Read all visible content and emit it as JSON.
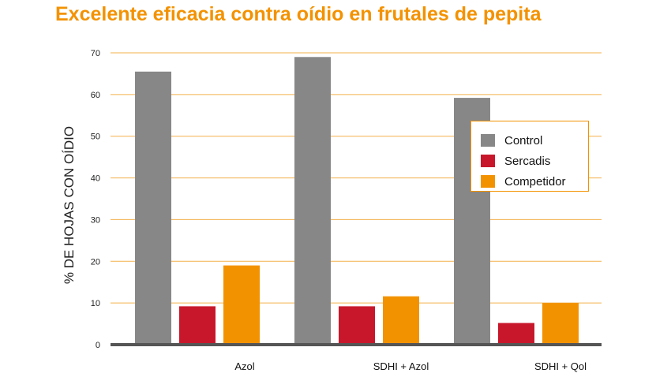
{
  "colors": {
    "title": "#f39200",
    "gridline": "#f3b04a",
    "axis": "#555555",
    "tick_text": "#222222"
  },
  "chart_data": {
    "type": "bar",
    "title": "Excelente eficacia contra oídio en frutales de pepita",
    "xlabel": "",
    "ylabel": "% DE HOJAS CON OÍDIO",
    "ylim": [
      0,
      70
    ],
    "yticks": [
      "0",
      "10",
      "20",
      "30",
      "40",
      "50",
      "60",
      "70"
    ],
    "grid": true,
    "legend_position": "right",
    "categories": [
      "Azol",
      "SDHI + Azol",
      "SDHI + Qol"
    ],
    "series": [
      {
        "name": "Control",
        "color": "#878787",
        "values": [
          65.5,
          69,
          59.2
        ]
      },
      {
        "name": "Sercadis",
        "color": "#c8172b",
        "values": [
          9.2,
          9.2,
          5.2
        ]
      },
      {
        "name": "Competidor",
        "color": "#f39200",
        "values": [
          19,
          11.6,
          10
        ]
      }
    ]
  }
}
